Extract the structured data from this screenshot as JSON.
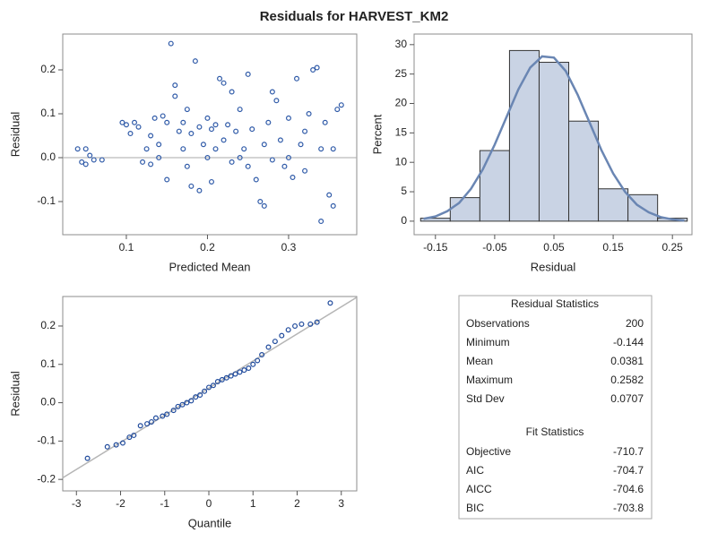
{
  "title": "Residuals for HARVEST_KM2",
  "chart_data": [
    {
      "type": "scatter",
      "x_label": "Predicted Mean",
      "y_label": "Residual",
      "color": "#2f5aa8",
      "x": [
        0.04,
        0.045,
        0.05,
        0.055,
        0.06,
        0.05,
        0.07,
        0.095,
        0.1,
        0.105,
        0.11,
        0.115,
        0.12,
        0.125,
        0.13,
        0.13,
        0.135,
        0.14,
        0.14,
        0.145,
        0.15,
        0.15,
        0.155,
        0.16,
        0.16,
        0.165,
        0.17,
        0.17,
        0.175,
        0.175,
        0.18,
        0.18,
        0.185,
        0.19,
        0.19,
        0.195,
        0.2,
        0.2,
        0.205,
        0.205,
        0.21,
        0.21,
        0.215,
        0.22,
        0.22,
        0.225,
        0.23,
        0.23,
        0.235,
        0.24,
        0.24,
        0.245,
        0.25,
        0.25,
        0.255,
        0.26,
        0.265,
        0.27,
        0.27,
        0.275,
        0.28,
        0.28,
        0.285,
        0.29,
        0.295,
        0.3,
        0.3,
        0.305,
        0.31,
        0.315,
        0.32,
        0.32,
        0.325,
        0.33,
        0.335,
        0.34,
        0.34,
        0.345,
        0.35,
        0.355,
        0.36,
        0.365,
        0.355
      ],
      "values": [
        0.02,
        -0.01,
        0.02,
        0.005,
        -0.005,
        -0.015,
        -0.005,
        0.08,
        0.075,
        0.055,
        0.08,
        0.07,
        -0.01,
        0.02,
        0.05,
        -0.015,
        0.09,
        0.03,
        0.0,
        0.095,
        0.08,
        -0.05,
        0.26,
        0.14,
        0.165,
        0.06,
        0.08,
        0.02,
        0.11,
        -0.02,
        0.055,
        -0.065,
        0.22,
        0.07,
        -0.075,
        0.03,
        0.09,
        0.0,
        0.065,
        -0.055,
        0.075,
        0.02,
        0.18,
        0.17,
        0.04,
        0.075,
        0.15,
        -0.01,
        0.06,
        0.11,
        0.0,
        0.02,
        -0.02,
        0.19,
        0.065,
        -0.05,
        -0.1,
        0.03,
        -0.11,
        0.08,
        0.15,
        -0.005,
        0.13,
        0.04,
        -0.02,
        0.09,
        0.0,
        -0.045,
        0.18,
        0.03,
        0.06,
        -0.03,
        0.1,
        0.2,
        0.205,
        -0.145,
        0.02,
        0.08,
        -0.085,
        -0.11,
        0.11,
        0.12,
        0.02
      ],
      "reference_line": 0,
      "xlim": [
        0.0216,
        0.384
      ],
      "xticks": [
        0.1,
        0.2,
        0.3
      ],
      "ylim": [
        -0.1755,
        0.2816
      ],
      "yticks": [
        -0.1,
        {
          "value": 0,
          "label": "0.0"
        },
        0.1,
        0.2
      ]
    },
    {
      "type": "histogram",
      "x_label": "Residual",
      "y_label": "Percent",
      "color": "#c9d3e4",
      "bins": [
        -0.175,
        -0.125,
        -0.075,
        -0.025,
        0.025,
        0.075,
        0.125,
        0.175,
        0.225,
        0.275
      ],
      "values": [
        0.5,
        4,
        12,
        29,
        27,
        17,
        5.5,
        4.5,
        0.5
      ],
      "density": {
        "color": "#6a86b3",
        "x": [
          -0.17,
          -0.15,
          -0.13,
          -0.11,
          -0.09,
          -0.07,
          -0.05,
          -0.03,
          -0.01,
          0.01,
          0.03,
          0.05,
          0.07,
          0.09,
          0.11,
          0.13,
          0.15,
          0.17,
          0.19,
          0.21,
          0.23,
          0.25,
          0.27
        ],
        "values": [
          0.4,
          0.8,
          1.7,
          3.1,
          5.5,
          8.8,
          13.0,
          17.7,
          22.4,
          26.1,
          28.0,
          27.8,
          25.5,
          21.5,
          16.8,
          12.1,
          8.1,
          5.0,
          2.8,
          1.5,
          0.7,
          0.3,
          0.1
        ]
      },
      "xlim": [
        -0.186,
        0.283
      ],
      "xticks": [
        -0.15,
        -0.05,
        0.05,
        0.15,
        0.25
      ],
      "ylim": [
        -2.3,
        31.8
      ],
      "yticks": [
        0,
        5,
        10,
        15,
        20,
        25,
        30
      ]
    },
    {
      "type": "qq",
      "x_label": "Quantile",
      "y_label": "Residual",
      "color": "#1f4a9c",
      "reference_line": {
        "intercept": 0.0381,
        "slope": 0.0707,
        "color": "#b5b5b5"
      },
      "x": [
        -2.75,
        -2.3,
        -2.1,
        -1.95,
        -1.8,
        -1.7,
        -1.55,
        -1.4,
        -1.3,
        -1.2,
        -1.05,
        -0.95,
        -0.8,
        -0.7,
        -0.6,
        -0.5,
        -0.4,
        -0.3,
        -0.2,
        -0.1,
        0,
        0.1,
        0.2,
        0.3,
        0.4,
        0.5,
        0.6,
        0.7,
        0.8,
        0.9,
        1.0,
        1.1,
        1.2,
        1.35,
        1.5,
        1.65,
        1.8,
        1.95,
        2.1,
        2.3,
        2.45,
        2.75
      ],
      "values": [
        -0.145,
        -0.115,
        -0.11,
        -0.105,
        -0.09,
        -0.085,
        -0.06,
        -0.055,
        -0.05,
        -0.04,
        -0.035,
        -0.03,
        -0.02,
        -0.01,
        -0.005,
        0,
        0.005,
        0.015,
        0.02,
        0.03,
        0.04,
        0.045,
        0.055,
        0.06,
        0.065,
        0.07,
        0.075,
        0.08,
        0.085,
        0.09,
        0.1,
        0.11,
        0.125,
        0.145,
        0.16,
        0.175,
        0.19,
        0.2,
        0.205,
        0.205,
        0.21,
        0.26
      ],
      "xlim": [
        -3.31,
        3.35
      ],
      "xticks": [
        -3,
        -2,
        -1,
        0,
        1,
        2,
        3
      ],
      "ylim": [
        -0.23,
        0.277
      ],
      "yticks": [
        -0.2,
        -0.1,
        {
          "value": 0,
          "label": "0.0"
        },
        0.1,
        0.2
      ]
    }
  ],
  "tables": [
    {
      "title": "Residual Statistics",
      "rows": [
        [
          "Observations",
          "200"
        ],
        [
          "Minimum",
          "-0.144"
        ],
        [
          "Mean",
          "0.0381"
        ],
        [
          "Maximum",
          "0.2582"
        ],
        [
          "Std Dev",
          "0.0707"
        ]
      ]
    },
    {
      "title": "Fit Statistics",
      "rows": [
        [
          "Objective",
          "-710.7"
        ],
        [
          "AIC",
          "-704.7"
        ],
        [
          "AICC",
          "-704.6"
        ],
        [
          "BIC",
          "-703.8"
        ]
      ]
    }
  ]
}
